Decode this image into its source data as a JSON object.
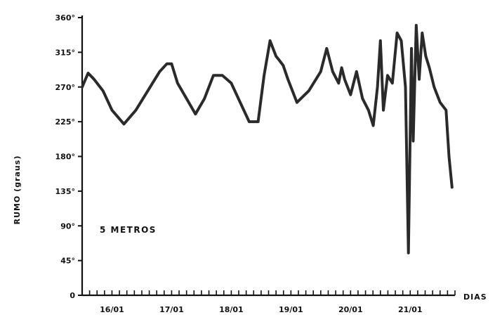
{
  "chart_data": {
    "type": "line",
    "title": "",
    "ylabel": "RUMO (graus)",
    "xlabel": "DIAS",
    "annotation": "5 METROS",
    "ylim": [
      0,
      360
    ],
    "xlim": [
      15.5,
      21.75
    ],
    "y_ticks": [
      0,
      45,
      90,
      135,
      180,
      225,
      270,
      315,
      360
    ],
    "y_tick_labels": [
      "0",
      "45°",
      "90°",
      "135°",
      "180°",
      "225°",
      "270°",
      "315°",
      "360°"
    ],
    "x_tick_labels": [
      {
        "label": "16/01",
        "x": 16
      },
      {
        "label": "17/01",
        "x": 17
      },
      {
        "label": "18/01",
        "x": 18
      },
      {
        "label": "19/01",
        "x": 19
      },
      {
        "label": "20/01",
        "x": 20
      },
      {
        "label": "21/01",
        "x": 21
      }
    ],
    "grid": false,
    "series": [
      {
        "name": "",
        "x": [
          15.5,
          15.6,
          15.7,
          15.85,
          16.0,
          16.2,
          16.4,
          16.6,
          16.8,
          16.92,
          17.0,
          17.1,
          17.25,
          17.4,
          17.55,
          17.7,
          17.85,
          18.0,
          18.15,
          18.3,
          18.45,
          18.55,
          18.65,
          18.75,
          18.8,
          18.87,
          18.95,
          19.1,
          19.3,
          19.5,
          19.6,
          19.7,
          19.8,
          19.85,
          19.9,
          20.0,
          20.1,
          20.2,
          20.3,
          20.38,
          20.45,
          20.5,
          20.55,
          20.62,
          20.7,
          20.78,
          20.85,
          20.92,
          20.97,
          21.02,
          21.05,
          21.1,
          21.15,
          21.2,
          21.26,
          21.32,
          21.4,
          21.5,
          21.6,
          21.65,
          21.7
        ],
        "y": [
          270,
          288,
          280,
          265,
          240,
          222,
          240,
          265,
          290,
          300,
          300,
          275,
          255,
          235,
          255,
          285,
          285,
          275,
          250,
          225,
          225,
          285,
          330,
          310,
          305,
          298,
          280,
          250,
          265,
          290,
          320,
          290,
          275,
          295,
          280,
          260,
          290,
          255,
          240,
          220,
          270,
          330,
          240,
          285,
          275,
          340,
          330,
          270,
          55,
          320,
          200,
          350,
          280,
          340,
          310,
          295,
          270,
          250,
          240,
          180,
          140
        ]
      }
    ]
  }
}
